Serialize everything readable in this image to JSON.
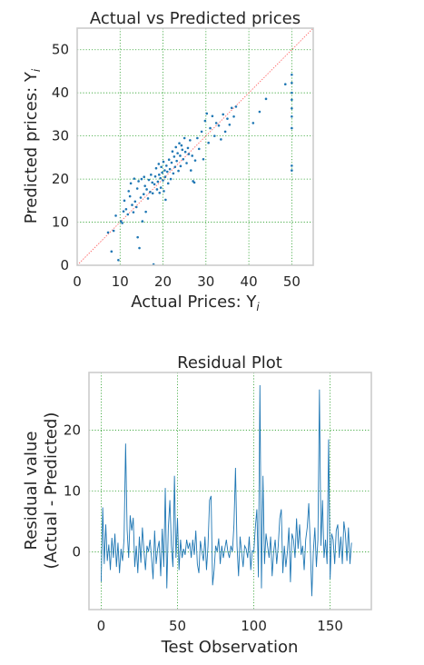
{
  "chart_data": [
    {
      "type": "scatter",
      "title": "Actual vs Predicted prices",
      "xlabel": "Actual Prices: Y",
      "xlabel_sub": "i",
      "ylabel": "Predicted prices: Y",
      "ylabel_sub": "i",
      "xlim": [
        0,
        55
      ],
      "ylim": [
        0,
        55
      ],
      "xticks": [
        0,
        10,
        20,
        30,
        40,
        50
      ],
      "yticks": [
        0,
        10,
        20,
        30,
        40,
        50
      ],
      "grid": true,
      "reference_line": "y = x",
      "colors": {
        "points": "#1f77b4",
        "reference": "#ff6b6b",
        "grid": "#2ca02c"
      },
      "points": [
        [
          7.2,
          7.6
        ],
        [
          8.0,
          3.2
        ],
        [
          8.5,
          8.0
        ],
        [
          9.0,
          11.5
        ],
        [
          9.6,
          1.2
        ],
        [
          10.2,
          10.2
        ],
        [
          10.5,
          9.8
        ],
        [
          10.8,
          12.5
        ],
        [
          11.0,
          15.0
        ],
        [
          11.4,
          13.0
        ],
        [
          11.8,
          11.8
        ],
        [
          12.0,
          17.2
        ],
        [
          12.3,
          16.0
        ],
        [
          12.5,
          19.0
        ],
        [
          12.8,
          14.0
        ],
        [
          13.1,
          12.3
        ],
        [
          13.3,
          20.1
        ],
        [
          13.5,
          14.8
        ],
        [
          13.8,
          13.5
        ],
        [
          14.0,
          17.8
        ],
        [
          14.1,
          6.5
        ],
        [
          14.3,
          19.5
        ],
        [
          14.5,
          4.0
        ],
        [
          14.8,
          15.7
        ],
        [
          15.0,
          20.0
        ],
        [
          15.2,
          10.2
        ],
        [
          15.5,
          16.5
        ],
        [
          15.6,
          20.5
        ],
        [
          15.8,
          18.4
        ],
        [
          16.0,
          12.4
        ],
        [
          16.2,
          17.6
        ],
        [
          16.5,
          15.5
        ],
        [
          16.7,
          19.8
        ],
        [
          17.0,
          17.0
        ],
        [
          17.2,
          21.0
        ],
        [
          17.5,
          19.2
        ],
        [
          17.6,
          16.7
        ],
        [
          17.8,
          0.2
        ],
        [
          18.0,
          18.8
        ],
        [
          18.2,
          20.6
        ],
        [
          18.4,
          22.5
        ],
        [
          18.6,
          17.6
        ],
        [
          18.8,
          19.4
        ],
        [
          19.0,
          23.5
        ],
        [
          19.1,
          21.0
        ],
        [
          19.2,
          16.8
        ],
        [
          19.4,
          20.2
        ],
        [
          19.5,
          18.0
        ],
        [
          19.6,
          22.8
        ],
        [
          19.8,
          21.5
        ],
        [
          20.0,
          19.7
        ],
        [
          20.1,
          24.0
        ],
        [
          20.2,
          17.2
        ],
        [
          20.4,
          22.0
        ],
        [
          20.5,
          20.5
        ],
        [
          20.6,
          15.2
        ],
        [
          20.8,
          23.1
        ],
        [
          21.0,
          21.7
        ],
        [
          21.2,
          19.0
        ],
        [
          21.4,
          24.5
        ],
        [
          21.6,
          22.3
        ],
        [
          21.8,
          20.0
        ],
        [
          22.0,
          23.8
        ],
        [
          22.2,
          26.4
        ],
        [
          22.4,
          21.3
        ],
        [
          22.6,
          25.2
        ],
        [
          22.8,
          22.8
        ],
        [
          23.0,
          27.4
        ],
        [
          23.2,
          24.2
        ],
        [
          23.4,
          26.0
        ],
        [
          23.6,
          21.9
        ],
        [
          23.8,
          28.3
        ],
        [
          24.0,
          25.4
        ],
        [
          24.1,
          23.0
        ],
        [
          24.3,
          27.8
        ],
        [
          24.5,
          26.8
        ],
        [
          24.7,
          24.6
        ],
        [
          25.0,
          29.5
        ],
        [
          25.2,
          26.3
        ],
        [
          25.5,
          23.7
        ],
        [
          25.8,
          27.2
        ],
        [
          26.0,
          25.8
        ],
        [
          26.3,
          29.0
        ],
        [
          26.5,
          22.0
        ],
        [
          26.8,
          25.4
        ],
        [
          27.0,
          19.5
        ],
        [
          27.3,
          19.2
        ],
        [
          27.5,
          24.3
        ],
        [
          28.0,
          29.5
        ],
        [
          28.4,
          27.0
        ],
        [
          29.0,
          31.0
        ],
        [
          29.4,
          24.6
        ],
        [
          29.8,
          33.5
        ],
        [
          30.2,
          35.2
        ],
        [
          30.6,
          28.4
        ],
        [
          31.0,
          31.8
        ],
        [
          31.5,
          34.6
        ],
        [
          32.0,
          30.0
        ],
        [
          32.4,
          33.0
        ],
        [
          33.0,
          32.4
        ],
        [
          33.5,
          29.2
        ],
        [
          34.0,
          35.0
        ],
        [
          34.5,
          31.0
        ],
        [
          35.0,
          34.0
        ],
        [
          35.5,
          32.6
        ],
        [
          36.0,
          36.5
        ],
        [
          36.5,
          34.5
        ],
        [
          37.0,
          36.8
        ],
        [
          41.0,
          33.0
        ],
        [
          42.5,
          35.6
        ],
        [
          44.0,
          38.6
        ],
        [
          48.5,
          42.0
        ],
        [
          50.0,
          44.2
        ],
        [
          50.0,
          42.3
        ],
        [
          50.0,
          40.0
        ],
        [
          50.0,
          36.4
        ],
        [
          50.0,
          34.5
        ],
        [
          50.0,
          31.8
        ],
        [
          50.0,
          23.1
        ],
        [
          50.0,
          22.0
        ],
        [
          50.0,
          38.4
        ]
      ]
    },
    {
      "type": "line",
      "title": "Residual Plot",
      "xlabel": "Test Observation",
      "ylabel_lines": [
        "Residual value",
        "(Actual - Predicted)"
      ],
      "xlim": [
        -8,
        177
      ],
      "ylim": [
        -9.5,
        29.5
      ],
      "xticks": [
        0,
        50,
        100,
        150
      ],
      "yticks": [
        0,
        10,
        20
      ],
      "grid": true,
      "colors": {
        "line": "#1f77b4",
        "grid": "#2ca02c"
      },
      "y": [
        -4.9,
        7.3,
        -2.0,
        4.5,
        -1.5,
        1.2,
        -3.0,
        2.3,
        -1.0,
        3.0,
        -2.5,
        1.5,
        -3.5,
        0.5,
        -1.5,
        2.2,
        17.8,
        3.6,
        -1.0,
        6.0,
        3.5,
        5.6,
        -2.5,
        1.0,
        -3.5,
        2.5,
        -1.8,
        4.0,
        0.2,
        -3.0,
        1.0,
        0.0,
        2.0,
        -1.0,
        -4.5,
        3.5,
        -2.0,
        0.5,
        1.8,
        -4.0,
        3.8,
        -2.5,
        10.5,
        -6.0,
        4.0,
        8.5,
        1.0,
        -2.5,
        12.5,
        -1.0,
        5.5,
        -3.0,
        2.0,
        -1.0,
        0.5,
        -0.5,
        2.0,
        0.5,
        1.5,
        -1.0,
        2.0,
        -0.5,
        3.5,
        -2.0,
        -3.5,
        1.8,
        0.0,
        -1.5,
        2.5,
        -3.0,
        1.0,
        8.5,
        9.2,
        -5.5,
        -3.0,
        1.0,
        0.0,
        2.2,
        -2.0,
        1.0,
        -1.0,
        0.5,
        2.0,
        0.0,
        -1.0,
        1.0,
        0.0,
        4.5,
        13.8,
        1.0,
        -4.0,
        2.5,
        0.0,
        -2.5,
        1.0,
        0.5,
        -1.0,
        2.5,
        -3.0,
        0.2,
        0.0,
        4.0,
        7.0,
        -4.2,
        27.4,
        -6.0,
        12.5,
        -2.0,
        3.0,
        1.0,
        -1.0,
        2.5,
        -4.0,
        0.0,
        2.0,
        -2.0,
        1.0,
        5.5,
        7.0,
        -3.5,
        1.0,
        -2.5,
        0.0,
        4.0,
        -5.0,
        3.0,
        2.0,
        -1.0,
        5.5,
        0.5,
        4.5,
        -0.5,
        1.0,
        -3.0,
        2.0,
        4.0,
        8.0,
        1.0,
        -7.3,
        0.0,
        4.0,
        -2.5,
        2.0,
        26.7,
        1.0,
        8.5,
        -1.0,
        2.0,
        -2.0,
        18.5,
        -4.5,
        3.0,
        2.0,
        -2.0,
        3.5,
        4.5,
        -1.0,
        2.5,
        -2.0,
        5.0,
        3.0,
        -1.5,
        4.0,
        -2.0,
        1.5
      ]
    }
  ]
}
